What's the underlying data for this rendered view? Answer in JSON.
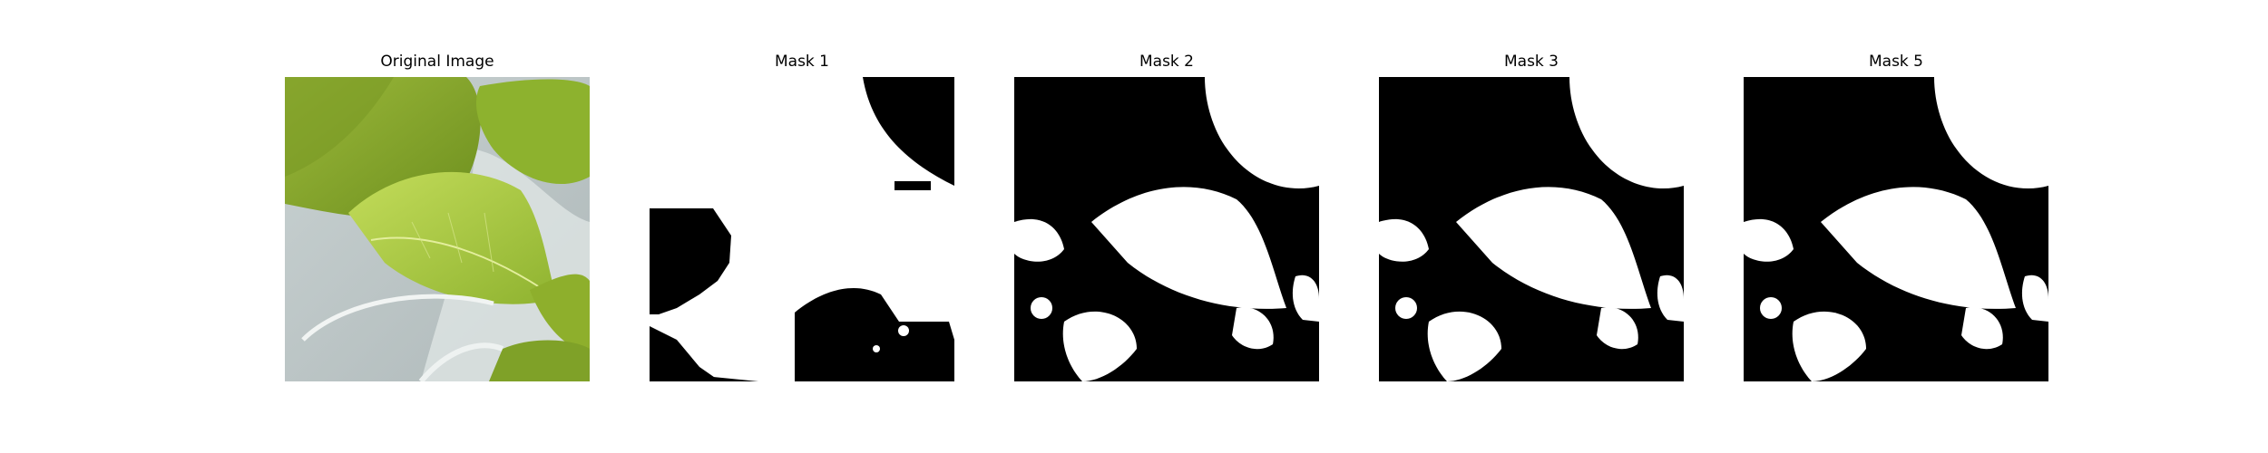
{
  "figure": {
    "panels": [
      {
        "title": "Original Image"
      },
      {
        "title": "Mask 1"
      },
      {
        "title": "Mask 2"
      },
      {
        "title": "Mask 3"
      },
      {
        "title": "Mask 5"
      }
    ]
  }
}
